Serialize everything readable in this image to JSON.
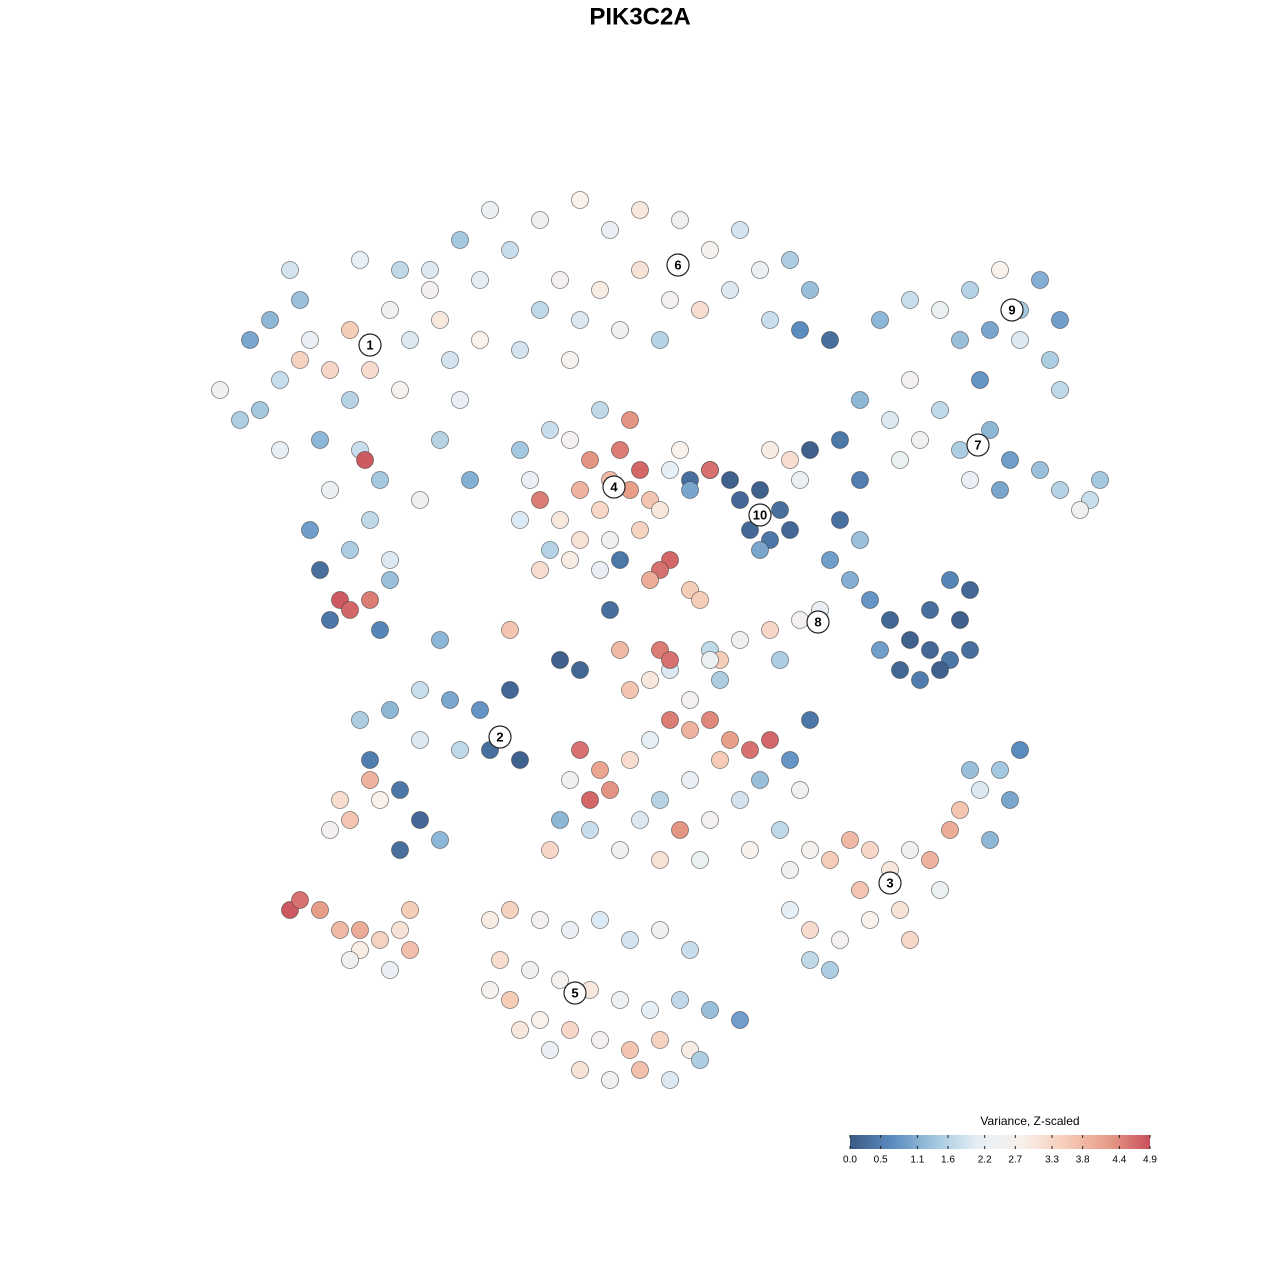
{
  "chart_data": {
    "type": "scatter",
    "title": "PIK3C2A",
    "xlim": [
      -48,
      48
    ],
    "ylim": [
      -48,
      48
    ],
    "series": [
      {
        "x": [
          -40,
          -38,
          -35,
          -33,
          -36,
          -31,
          -29,
          -27,
          -25,
          -23,
          -21,
          -26,
          -31,
          -34,
          -38,
          -42,
          -44,
          -30,
          -28,
          -33,
          -29,
          -35,
          -31,
          -27,
          -24,
          -22,
          -20,
          -18,
          -19,
          -34,
          -32,
          -31,
          -29,
          -33,
          -28,
          -27,
          -41,
          -37,
          -30,
          -26,
          -22,
          -36,
          -39,
          -29.5
        ],
        "y": [
          23,
          26,
          30,
          27,
          34,
          31,
          27,
          33,
          30,
          35,
          28,
          25,
          24,
          20,
          19,
          22,
          25,
          19,
          16,
          15,
          12,
          11,
          9,
          8,
          14,
          20,
          24,
          30,
          16,
          7,
          4,
          3,
          4,
          2,
          1,
          6,
          30,
          37,
          38,
          37,
          32,
          28,
          32,
          18
        ],
        "values": [
          1.4,
          1.8,
          2.2,
          3.3,
          1.3,
          3.5,
          3.2,
          2.4,
          2.0,
          2.6,
          1.9,
          2.7,
          1.6,
          1.2,
          2.1,
          1.5,
          2.4,
          1.8,
          1.4,
          2.3,
          1.7,
          0.9,
          1.5,
          2.0,
          2.5,
          1.6,
          2.2,
          2.8,
          1.1,
          0.3,
          4.8,
          4.7,
          4.5,
          0.4,
          0.6,
          1.3,
          1.0,
          1.9,
          2.1,
          1.7,
          3.0,
          3.4,
          1.2,
          4.8
        ]
      },
      {
        "x": [
          -12,
          -8,
          -5,
          -2,
          2,
          5,
          8,
          10,
          13,
          15,
          -15,
          -18,
          -10,
          -6,
          -2,
          1,
          4,
          -4,
          -8,
          -12,
          -20,
          -17,
          -23,
          14,
          17,
          11,
          7,
          0,
          -14,
          -9
        ],
        "y": [
          42,
          44,
          41,
          43,
          42,
          39,
          41,
          37,
          38,
          35,
          39,
          36,
          36,
          35,
          37,
          34,
          33,
          31,
          32,
          33,
          40,
          43,
          37,
          31,
          30,
          32,
          35,
          30,
          29,
          28
        ],
        "values": [
          2.5,
          2.8,
          2.2,
          3.0,
          2.4,
          2.7,
          1.9,
          2.3,
          1.5,
          1.3,
          1.8,
          2.1,
          2.6,
          2.9,
          3.1,
          2.6,
          3.2,
          2.4,
          2.0,
          1.7,
          1.4,
          2.3,
          2.0,
          0.7,
          0.3,
          1.8,
          2.0,
          1.6,
          1.9,
          2.7
        ]
      },
      {
        "x": [
          22,
          25,
          28,
          31,
          33,
          36,
          38,
          40,
          39,
          40,
          36,
          30,
          34,
          32
        ],
        "y": [
          32,
          34,
          33,
          35,
          31,
          33,
          36,
          32,
          28,
          25,
          30,
          30,
          37,
          26
        ],
        "values": [
          1.2,
          1.8,
          2.3,
          1.6,
          1.0,
          1.4,
          1.1,
          0.9,
          1.5,
          1.7,
          2.0,
          1.3,
          2.8,
          0.8
        ]
      },
      {
        "x": [
          20,
          23,
          26,
          28,
          30,
          33,
          35,
          38,
          40,
          43,
          44,
          34,
          31,
          25,
          18,
          20,
          24,
          42
        ],
        "y": [
          24,
          22,
          20,
          23,
          19,
          21,
          18,
          17,
          15,
          14,
          16,
          15,
          16,
          26,
          20,
          16,
          18,
          13
        ],
        "values": [
          1.2,
          2.0,
          2.4,
          1.7,
          1.5,
          1.2,
          0.9,
          1.3,
          1.6,
          1.8,
          1.4,
          1.0,
          2.2,
          2.6,
          0.4,
          0.5,
          2.3,
          2.5
        ]
      },
      {
        "x": [
          8,
          10,
          12,
          9,
          11,
          13,
          10,
          7,
          5,
          3,
          13,
          11,
          15,
          14
        ],
        "y": [
          14,
          15,
          13,
          11,
          10,
          11,
          9,
          16,
          17,
          16,
          18,
          19,
          19,
          16
        ],
        "values": [
          0.2,
          0.1,
          0.3,
          0.2,
          0.4,
          0.2,
          1.0,
          0.1,
          0.2,
          0.3,
          3.2,
          2.9,
          0.1,
          2.3
        ]
      },
      {
        "x": [
          18,
          20,
          17,
          19,
          21,
          23,
          25,
          27,
          29,
          31,
          30,
          27,
          24,
          26,
          28,
          29,
          31,
          22,
          14,
          11,
          8,
          5,
          6,
          12,
          16
        ],
        "y": [
          12,
          10,
          8,
          6,
          4,
          2,
          0,
          -1,
          -2,
          -1,
          2,
          3,
          -3,
          -4,
          -3,
          6,
          5,
          -1,
          2,
          1,
          0,
          -1,
          -2,
          -2,
          3
        ],
        "values": [
          0.3,
          1.3,
          0.9,
          1.1,
          0.8,
          0.2,
          0.1,
          0.2,
          0.4,
          0.3,
          0.1,
          0.3,
          0.2,
          0.5,
          0.1,
          0.6,
          0.2,
          0.9,
          2.6,
          3.3,
          2.4,
          1.7,
          3.5,
          1.5,
          2.2
        ]
      },
      {
        "x": [
          -7,
          -4,
          -2,
          -5,
          -3,
          -1,
          -6,
          -8,
          -12,
          -10,
          -13,
          -14,
          -11,
          -8,
          -5,
          -2,
          0,
          -9,
          -11,
          -14,
          -12,
          -9,
          -6,
          -4,
          1,
          3,
          5,
          2,
          -3,
          -6,
          1,
          3
        ],
        "y": [
          18,
          19,
          17,
          16,
          15,
          14,
          13,
          15,
          14,
          12,
          16,
          12,
          9,
          10,
          10,
          11,
          13,
          20,
          21,
          19,
          7,
          8,
          7,
          8,
          17,
          15,
          17,
          19,
          22,
          23,
          8,
          5
        ],
        "values": [
          4.3,
          4.5,
          4.7,
          3.8,
          4.2,
          3.6,
          3.3,
          3.9,
          4.5,
          3.0,
          2.2,
          2.0,
          1.6,
          3.1,
          2.4,
          3.4,
          3.0,
          2.6,
          1.8,
          1.4,
          3.2,
          2.9,
          2.2,
          0.4,
          2.1,
          1.0,
          4.6,
          2.8,
          4.3,
          1.7,
          4.7,
          3.5
        ]
      },
      {
        "x": [
          -30,
          -27,
          -24,
          -21,
          -18,
          -15,
          -17,
          -14,
          -20,
          -24,
          -29,
          -32,
          -31,
          -28,
          -26,
          -24,
          -26,
          -22,
          -29,
          -33
        ],
        "y": [
          -8,
          -7,
          -5,
          -6,
          -7,
          -5,
          -11,
          -12,
          -11,
          -10,
          -12,
          -16,
          -18,
          -16,
          -15,
          -18,
          -21,
          -20,
          -14,
          -19
        ],
        "values": [
          1.5,
          1.2,
          1.8,
          1.0,
          0.8,
          0.2,
          0.3,
          0.1,
          1.7,
          2.0,
          0.5,
          3.2,
          3.6,
          2.8,
          0.4,
          0.2,
          0.3,
          1.2,
          3.9,
          2.6
        ]
      },
      {
        "x": [
          -37,
          -36,
          -34,
          -32,
          -30,
          -28,
          -26,
          -25,
          -30,
          -31,
          -25,
          -27
        ],
        "y": [
          -27,
          -26,
          -27,
          -29,
          -29,
          -30,
          -29,
          -31,
          -31,
          -32,
          -27,
          -33
        ],
        "values": [
          4.8,
          4.6,
          4.2,
          3.8,
          4.0,
          3.4,
          3.1,
          3.7,
          2.9,
          2.5,
          3.5,
          2.2
        ]
      },
      {
        "x": [
          13,
          15,
          17,
          19,
          21,
          23,
          25,
          27,
          29,
          30,
          32,
          34,
          35,
          33,
          28,
          24,
          21,
          18,
          15,
          13,
          15,
          17,
          25,
          36,
          31,
          20
        ],
        "y": [
          -23,
          -21,
          -22,
          -20,
          -21,
          -23,
          -21,
          -22,
          -19,
          -17,
          -15,
          -13,
          -16,
          -20,
          -25,
          -27,
          -28,
          -30,
          -29,
          -27,
          -32,
          -33,
          -30,
          -11,
          -13,
          -25
        ],
        "values": [
          2.4,
          2.7,
          3.5,
          3.8,
          3.3,
          3.0,
          2.5,
          3.9,
          4.0,
          3.6,
          2.0,
          1.4,
          1.0,
          1.2,
          2.3,
          3.1,
          2.8,
          2.6,
          3.2,
          2.1,
          1.7,
          1.5,
          3.3,
          0.7,
          1.3,
          3.6
        ]
      },
      {
        "x": [
          -17,
          -15,
          -12,
          -9,
          -6,
          -3,
          0,
          3,
          -16,
          -13,
          -10,
          -7,
          -4,
          -1,
          2,
          5,
          8,
          -15,
          -12,
          -9,
          -6,
          -3,
          0,
          3,
          -8,
          -5,
          -2,
          1,
          4,
          -11,
          -14,
          -17
        ],
        "y": [
          -28,
          -27,
          -28,
          -29,
          -28,
          -30,
          -29,
          -31,
          -32,
          -33,
          -34,
          -35,
          -36,
          -37,
          -36,
          -37,
          -38,
          -36,
          -38,
          -39,
          -40,
          -41,
          -40,
          -41,
          -43,
          -44,
          -43,
          -44,
          -42,
          -41,
          -39,
          -35
        ],
        "values": [
          2.9,
          3.4,
          2.6,
          2.2,
          2.0,
          1.9,
          2.5,
          1.8,
          3.2,
          2.4,
          2.7,
          3.0,
          2.3,
          2.1,
          1.7,
          1.3,
          0.9,
          3.5,
          2.8,
          3.3,
          2.6,
          3.6,
          3.4,
          2.9,
          3.1,
          2.4,
          3.7,
          2.0,
          1.5,
          2.2,
          3.0,
          2.7
        ]
      },
      {
        "x": [
          -8,
          -6,
          -7,
          -5,
          -3,
          -1,
          1,
          3,
          5,
          7,
          9,
          11,
          6,
          3,
          0,
          -2,
          2,
          5,
          8,
          10,
          13,
          15,
          14,
          12,
          9,
          4,
          0,
          -4,
          -7,
          -9,
          -10,
          -11,
          -3,
          -1,
          3,
          1,
          6,
          5,
          -4,
          0,
          1,
          -8,
          -10
        ],
        "y": [
          -11,
          -13,
          -16,
          -15,
          -12,
          -10,
          -8,
          -9,
          -8,
          -10,
          -11,
          -10,
          -12,
          -14,
          -16,
          -18,
          -19,
          -18,
          -16,
          -14,
          -12,
          -8,
          -15,
          -19,
          -21,
          -22,
          -22,
          -21,
          -19,
          -14,
          -18,
          -21,
          -5,
          -4,
          -6,
          -3,
          -4,
          -2,
          -1,
          -1,
          -2,
          -3,
          -2
        ],
        "values": [
          4.6,
          4.1,
          4.7,
          4.3,
          3.2,
          2.1,
          4.5,
          3.9,
          4.4,
          4.2,
          4.6,
          4.7,
          3.5,
          2.2,
          1.6,
          2.0,
          4.3,
          2.6,
          1.9,
          1.3,
          0.8,
          0.4,
          2.4,
          1.7,
          2.8,
          2.3,
          3.1,
          2.5,
          1.8,
          2.4,
          1.2,
          3.3,
          3.6,
          3.0,
          2.6,
          2.0,
          1.5,
          2.3,
          3.8,
          4.5,
          4.6,
          0.2,
          0.1
        ]
      },
      {
        "x": [
          -22,
          -15,
          -5,
          0,
          4,
          -1
        ],
        "y": [
          0,
          1,
          3,
          7,
          4,
          6
        ],
        "values": [
          1.2,
          3.6,
          0.3,
          4.6,
          3.5,
          4.0
        ]
      }
    ],
    "annotations": [
      {
        "text": "1",
        "x": -29,
        "y": 29.5
      },
      {
        "text": "2",
        "x": -16,
        "y": -9.7
      },
      {
        "text": "3",
        "x": 23,
        "y": -24.3
      },
      {
        "text": "4",
        "x": -4.6,
        "y": 15.3
      },
      {
        "text": "5",
        "x": -8.5,
        "y": -35.3
      },
      {
        "text": "6",
        "x": 1.8,
        "y": 37.5
      },
      {
        "text": "7",
        "x": 31.8,
        "y": 19.5
      },
      {
        "text": "8",
        "x": 15.8,
        "y": 1.8
      },
      {
        "text": "9",
        "x": 35.2,
        "y": 33
      },
      {
        "text": "10",
        "x": 10,
        "y": 12.5
      }
    ],
    "colorbar": {
      "title": "Variance, Z-scaled",
      "clim": [
        0,
        4.9
      ],
      "ticks": [
        {
          "value": 0,
          "label": "0.0"
        },
        0.5,
        1.1,
        1.6,
        2.2,
        2.7,
        3.3,
        3.8,
        4.4,
        4.9
      ],
      "colors": [
        "#3b5a84",
        "#5b8cc0",
        "#a3c8df",
        "#e6eff5",
        "#f8f1ec",
        "#f6cdb9",
        "#e89f8a",
        "#c94f5a"
      ]
    }
  }
}
